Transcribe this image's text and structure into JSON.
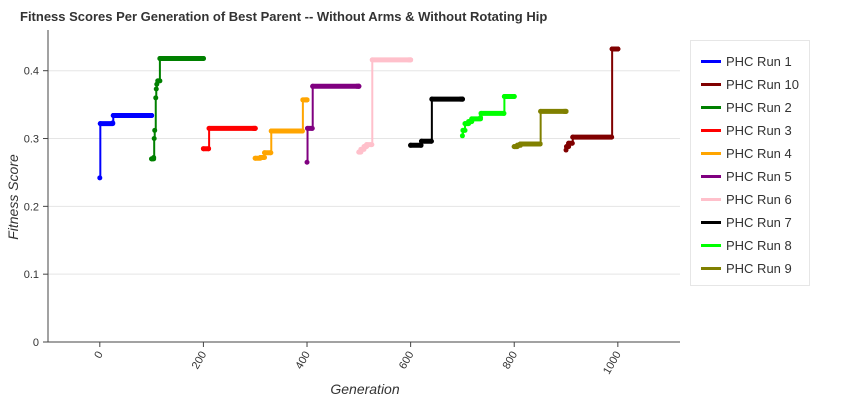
{
  "chart_data": {
    "type": "line",
    "title": "Fitness Scores Per Generation of Best Parent -- Without Arms & Without Rotating Hip",
    "xlabel": "Generation",
    "ylabel": "Fitness Score",
    "xlim": [
      -100,
      1120
    ],
    "ylim": [
      0,
      0.46
    ],
    "x_ticks": [
      "0",
      "200",
      "400",
      "600",
      "800",
      "1000"
    ],
    "y_ticks": [
      "0",
      "0.1",
      "0.2",
      "0.3",
      "0.4"
    ],
    "grid": true,
    "legend_position": "right",
    "series": [
      {
        "name": "PHC Run 1",
        "color": "#0000ff",
        "points": [
          [
            0,
            0.242
          ],
          [
            1,
            0.322
          ],
          [
            25,
            0.323
          ],
          [
            26,
            0.334
          ],
          [
            100,
            0.334
          ]
        ]
      },
      {
        "name": "PHC Run 10",
        "color": "#800000",
        "points": [
          [
            900,
            0.283
          ],
          [
            901,
            0.288
          ],
          [
            905,
            0.293
          ],
          [
            912,
            0.293
          ],
          [
            913,
            0.302
          ],
          [
            988,
            0.302
          ],
          [
            989,
            0.432
          ],
          [
            1000,
            0.432
          ]
        ]
      },
      {
        "name": "PHC Run 2",
        "color": "#008000",
        "points": [
          [
            100,
            0.27
          ],
          [
            104,
            0.272
          ],
          [
            105,
            0.3
          ],
          [
            106,
            0.312
          ],
          [
            108,
            0.36
          ],
          [
            109,
            0.373
          ],
          [
            110,
            0.38
          ],
          [
            112,
            0.385
          ],
          [
            116,
            0.418
          ],
          [
            200,
            0.418
          ]
        ]
      },
      {
        "name": "PHC Run 3",
        "color": "#ff0000",
        "points": [
          [
            200,
            0.285
          ],
          [
            210,
            0.285
          ],
          [
            211,
            0.315
          ],
          [
            300,
            0.315
          ]
        ]
      },
      {
        "name": "PHC Run 4",
        "color": "#ffa500",
        "points": [
          [
            300,
            0.271
          ],
          [
            310,
            0.272
          ],
          [
            318,
            0.279
          ],
          [
            330,
            0.279
          ],
          [
            331,
            0.311
          ],
          [
            391,
            0.311
          ],
          [
            392,
            0.357
          ],
          [
            400,
            0.357
          ]
        ]
      },
      {
        "name": "PHC Run 5",
        "color": "#800080",
        "points": [
          [
            400,
            0.265
          ],
          [
            401,
            0.315
          ],
          [
            410,
            0.315
          ],
          [
            411,
            0.377
          ],
          [
            500,
            0.377
          ]
        ]
      },
      {
        "name": "PHC Run 6",
        "color": "#ffc0cb",
        "points": [
          [
            500,
            0.28
          ],
          [
            504,
            0.284
          ],
          [
            510,
            0.288
          ],
          [
            515,
            0.291
          ],
          [
            525,
            0.291
          ],
          [
            526,
            0.416
          ],
          [
            600,
            0.416
          ]
        ]
      },
      {
        "name": "PHC Run 7",
        "color": "#000000",
        "points": [
          [
            600,
            0.29
          ],
          [
            620,
            0.29
          ],
          [
            621,
            0.296
          ],
          [
            640,
            0.296
          ],
          [
            641,
            0.358
          ],
          [
            700,
            0.358
          ]
        ]
      },
      {
        "name": "PHC Run 8",
        "color": "#00ff00",
        "points": [
          [
            700,
            0.304
          ],
          [
            701,
            0.312
          ],
          [
            705,
            0.322
          ],
          [
            712,
            0.325
          ],
          [
            718,
            0.329
          ],
          [
            735,
            0.331
          ],
          [
            736,
            0.337
          ],
          [
            780,
            0.337
          ],
          [
            781,
            0.362
          ],
          [
            800,
            0.362
          ]
        ]
      },
      {
        "name": "PHC Run 9",
        "color": "#808000",
        "points": [
          [
            800,
            0.288
          ],
          [
            806,
            0.29
          ],
          [
            812,
            0.292
          ],
          [
            850,
            0.292
          ],
          [
            851,
            0.34
          ],
          [
            900,
            0.34
          ]
        ]
      }
    ]
  }
}
